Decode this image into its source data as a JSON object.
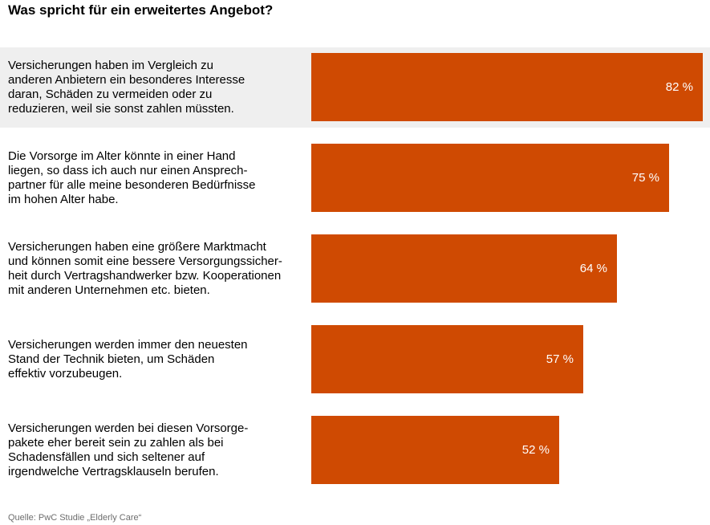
{
  "chart_data": {
    "type": "bar",
    "orientation": "horizontal",
    "title": "Was spricht für ein erweitertes Angebot?",
    "categories": [
      "Versicherungen haben im Vergleich zu\nanderen Anbietern ein besonderes Interesse\ndaran, Schäden zu vermeiden oder zu\nreduzieren, weil sie sonst zahlen müssten.",
      "Die Vorsorge im Alter könnte in einer Hand\nliegen, so dass ich auch nur einen Ansprech-\npartner für alle meine besonderen Bedürfnisse\nim hohen Alter habe.",
      "Versicherungen haben eine größere Marktmacht\nund können somit eine bessere Versorgungssicher-\nheit durch Vertragshandwerker bzw. Kooperationen\nmit anderen Unternehmen etc. bieten.",
      "Versicherungen werden immer den neuesten\nStand der Technik bieten, um Schäden\neffektiv vorzubeugen.",
      "Versicherungen werden bei diesen Vorsorge-\npakete eher bereit sein zu zahlen als bei\nSchadensfällen und sich seltener auf\nirgendwelche Vertragsklauseln berufen."
    ],
    "values": [
      82,
      75,
      64,
      57,
      52
    ],
    "value_labels": [
      "82 %",
      "75 %",
      "64 %",
      "57 %",
      "52 %"
    ],
    "xlim": [
      0,
      100
    ],
    "bar_color": "#cf4a02",
    "highlight_row_color": "#efefef",
    "grid": false,
    "source": "Quelle: PwC Studie „Elderly Care“"
  }
}
